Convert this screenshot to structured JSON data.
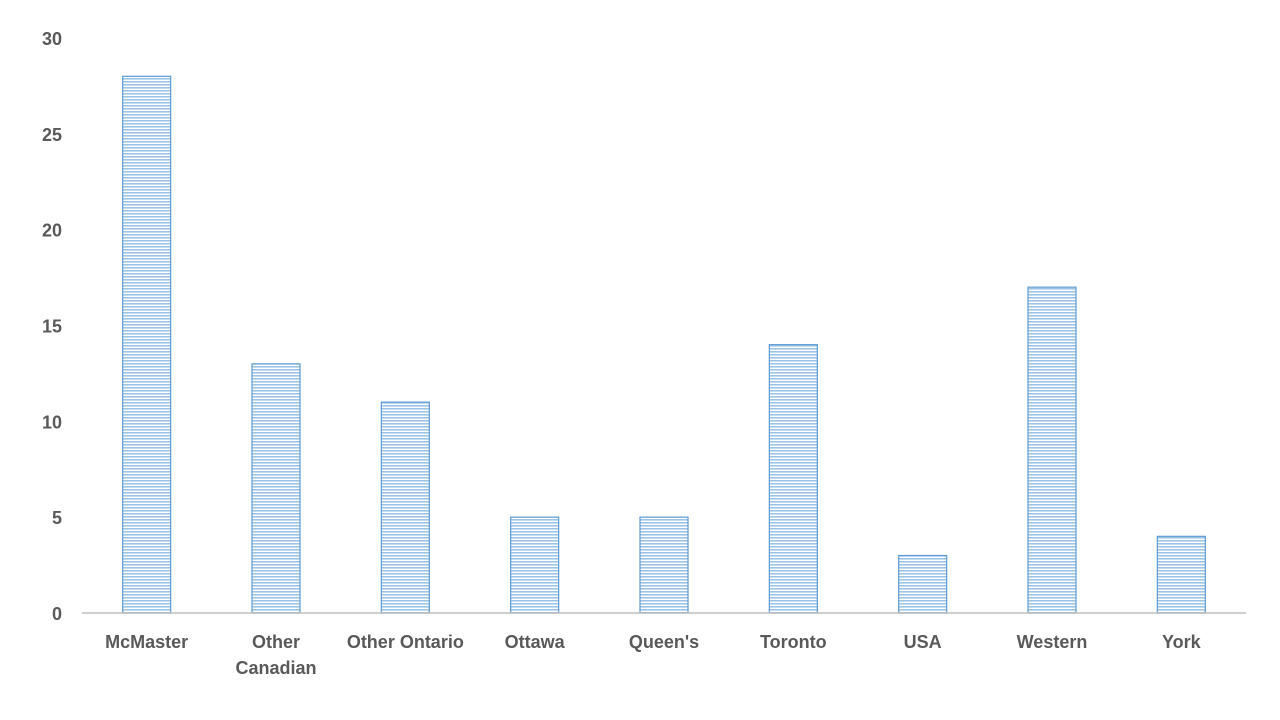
{
  "chart_data": {
    "type": "bar",
    "categories": [
      "McMaster",
      "Other Canadian",
      "Other Ontario",
      "Ottawa",
      "Queen's",
      "Toronto",
      "USA",
      "Western",
      "York"
    ],
    "category_lines": [
      [
        "McMaster"
      ],
      [
        "Other",
        "Canadian"
      ],
      [
        "Other Ontario"
      ],
      [
        "Ottawa"
      ],
      [
        "Queen's"
      ],
      [
        "Toronto"
      ],
      [
        "USA"
      ],
      [
        "Western"
      ],
      [
        "York"
      ]
    ],
    "values": [
      28,
      13,
      11,
      5,
      5,
      14,
      3,
      17,
      4
    ],
    "ylim": [
      0,
      30
    ],
    "yticks": [
      0,
      5,
      10,
      15,
      20,
      25,
      30
    ],
    "title": "",
    "xlabel": "",
    "ylabel": "",
    "grid": false,
    "legend": "none",
    "colors": {
      "bar_fill": "#9DC3E6",
      "bar_stripe": "#ffffff",
      "bar_border": "#5B9BD5",
      "axis": "#BFBFBF",
      "label": "#595959"
    }
  }
}
